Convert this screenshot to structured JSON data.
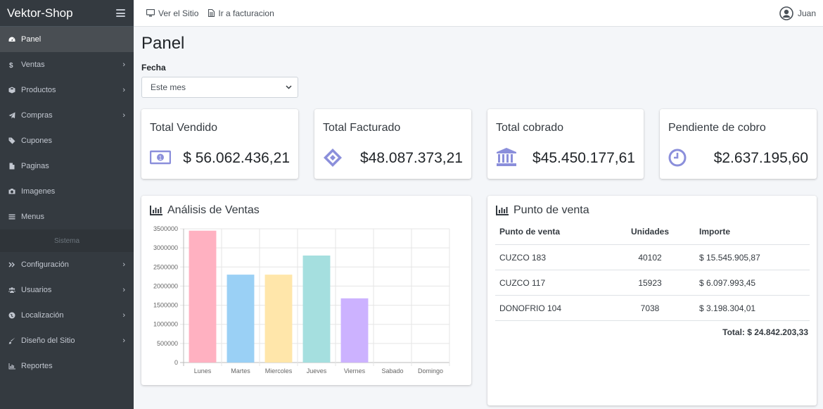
{
  "brand": "Vektor-Shop",
  "sidebar": {
    "items": [
      {
        "label": "Panel",
        "icon": "dashboard-icon"
      },
      {
        "label": "Ventas",
        "icon": "dollar-icon"
      },
      {
        "label": "Productos",
        "icon": "cube-icon"
      },
      {
        "label": "Compras",
        "icon": "paper-plane-icon"
      },
      {
        "label": "Cupones",
        "icon": "tags-icon"
      },
      {
        "label": "Paginas",
        "icon": "file-icon"
      },
      {
        "label": "Imagenes",
        "icon": "camera-icon"
      },
      {
        "label": "Menus",
        "icon": "bars-icon"
      }
    ],
    "section_header": "Sistema",
    "system_items": [
      {
        "label": "Configuración",
        "icon": "angle-double-right-icon"
      },
      {
        "label": "Usuarios",
        "icon": "users-icon"
      },
      {
        "label": "Localización",
        "icon": "globe-icon"
      },
      {
        "label": "Diseño del Sitio",
        "icon": "paint-brush-icon"
      },
      {
        "label": "Reportes",
        "icon": "bar-chart-icon"
      }
    ]
  },
  "topbar": {
    "links": [
      "Ver el Sitio",
      "Ir a facturacion"
    ],
    "user": "Juan"
  },
  "page": {
    "title": "Panel",
    "filter_label": "Fecha",
    "filter_value": "Este mes"
  },
  "stats": [
    {
      "title": "Total Vendido",
      "value": "$ 56.062.436,21",
      "icon": "money-bill-icon"
    },
    {
      "title": "Total Facturado",
      "value": "$48.087.373,21",
      "icon": "ticket-icon"
    },
    {
      "title": "Total cobrado",
      "value": "$45.450.177,61",
      "icon": "bank-icon"
    },
    {
      "title": "Pendiente de cobro",
      "value": "$2.637.195,60",
      "icon": "clock-icon"
    }
  ],
  "colors": {
    "stat_icon": "#8b8fdb",
    "sidebar_bg": "#343a40"
  },
  "sales_panel": {
    "title": "Análisis de Ventas"
  },
  "chart_data": {
    "type": "bar",
    "categories": [
      "Lunes",
      "Martes",
      "Miercoles",
      "Jueves",
      "Viernes",
      "Sabado",
      "Domingo"
    ],
    "values": [
      3450000,
      2300000,
      2300000,
      2800000,
      1680000,
      0,
      0
    ],
    "colors": [
      "#ffb1c1",
      "#9ad0f5",
      "#ffe6aa",
      "#a5dfdf",
      "#ccb2ff",
      "#e4e5e7",
      "#e4e5e7"
    ],
    "yticks": [
      "0",
      "500000",
      "1000000",
      "1500000",
      "2000000",
      "2500000",
      "3000000",
      "3500000"
    ],
    "ylim": [
      0,
      3500000
    ],
    "grid": true
  },
  "pos_panel": {
    "title": "Punto de venta",
    "columns": [
      "Punto de venta",
      "Unidades",
      "Importe"
    ],
    "rows": [
      {
        "name": "CUZCO 183",
        "units": "40102",
        "amount": "$ 15.545.905,87"
      },
      {
        "name": "CUZCO 117",
        "units": "15923",
        "amount": "$ 6.097.993,45"
      },
      {
        "name": "DONOFRIO 104",
        "units": "7038",
        "amount": "$ 3.198.304,01"
      }
    ],
    "total": "Total: $ 24.842.203,33"
  }
}
